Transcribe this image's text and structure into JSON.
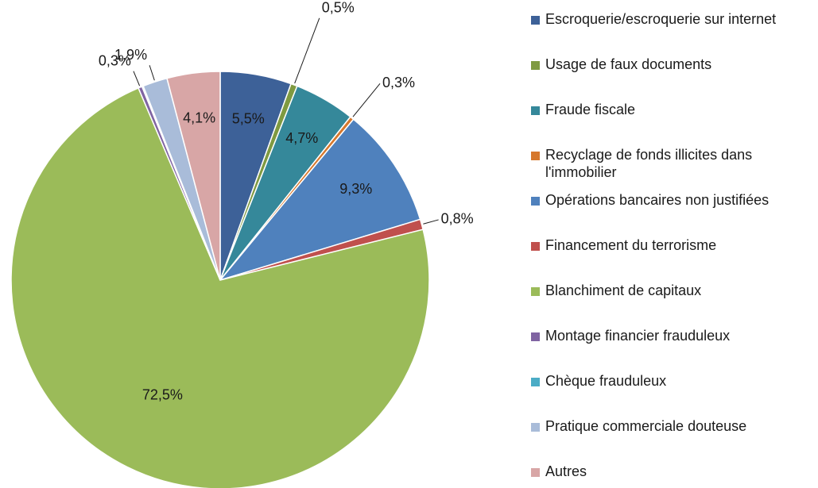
{
  "chart_data": {
    "type": "pie",
    "categories": [
      "Escroquerie/escroquerie sur internet",
      "Usage de faux documents",
      "Fraude fiscale",
      "Recyclage de fonds illicites dans l'immobilier",
      "Opérations bancaires non justifiées",
      "Financement du terrorisme",
      "Blanchiment de capitaux",
      "Montage financier frauduleux",
      "Chèque frauduleux",
      "Pratique commerciale douteuse",
      "Autres"
    ],
    "values": [
      5.5,
      0.5,
      4.7,
      0.3,
      9.3,
      0.8,
      72.5,
      0.3,
      0.1,
      1.9,
      4.1
    ],
    "value_labels": [
      "5,5%",
      "0,5%",
      "4,7%",
      "0,3%",
      "9,3%",
      "0,8%",
      "72,5%",
      "0,3%",
      null,
      "1,9%",
      "4,1%"
    ],
    "colors": [
      "#3d6198",
      "#7f9a41",
      "#35889a",
      "#d6782d",
      "#4f81bd",
      "#c0504d",
      "#9bbb59",
      "#8064a2",
      "#4bacc6",
      "#a9bcd9",
      "#d8a6a6"
    ],
    "legend": "right"
  }
}
